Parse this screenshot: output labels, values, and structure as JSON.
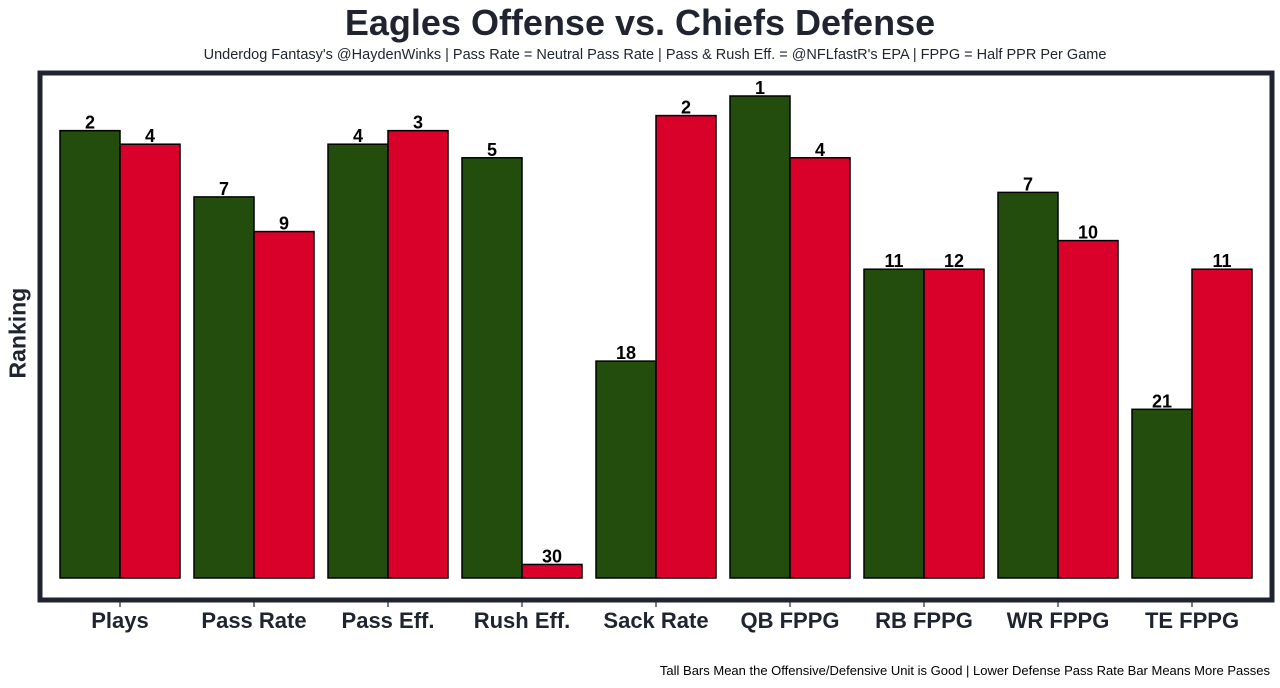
{
  "chart_data": {
    "type": "bar",
    "title": "Eagles Offense vs. Chiefs Defense",
    "subtitle": "Underdog Fantasy's @HaydenWinks | Pass Rate = Neutral Pass Rate | Pass & Rush Eff. = @NFLfastR's EPA | FPPG = Half PPR Per Game",
    "footer": "Tall Bars Mean the Offensive/Defensive Unit is Good | Lower Defense Pass Rate Bar Means More Passes",
    "xlabel": "",
    "ylabel": "Ranking",
    "categories": [
      "Plays",
      "Pass Rate",
      "Pass Eff.",
      "Rush Eff.",
      "Sack Rate",
      "QB FPPG",
      "RB FPPG",
      "WR FPPG",
      "TE FPPG"
    ],
    "ylim": [
      0,
      32
    ],
    "grid": false,
    "legend": "none",
    "series": [
      {
        "name": "Eagles Offense",
        "color": "#224d0c",
        "labels": [
          2,
          7,
          4,
          5,
          18,
          1,
          11,
          7,
          21
        ],
        "values": [
          29.7,
          25.3,
          28.8,
          27.9,
          14.4,
          32.0,
          20.5,
          25.6,
          11.2
        ]
      },
      {
        "name": "Chiefs Defense",
        "color": "#d9002a",
        "labels": [
          4,
          9,
          3,
          30,
          2,
          4,
          12,
          10,
          11
        ],
        "values": [
          28.8,
          23.0,
          29.7,
          0.9,
          30.7,
          27.9,
          20.5,
          22.4,
          20.5
        ]
      }
    ]
  }
}
